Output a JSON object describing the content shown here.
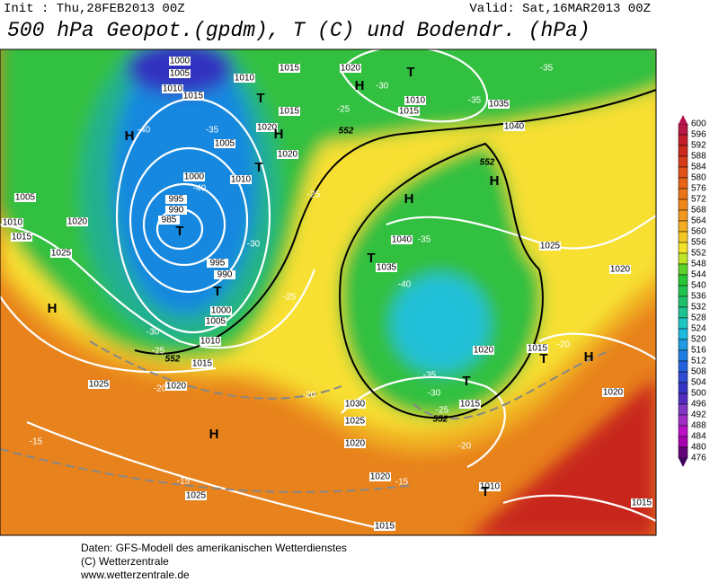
{
  "header": {
    "init": "Init : Thu,28FEB2013 00Z",
    "valid": "Valid: Sat,16MAR2013 00Z",
    "title": "500 hPa Geopot.(gpdm), T (C) und Bodendr. (hPa)"
  },
  "colorbar": {
    "labels": [
      600,
      596,
      592,
      588,
      584,
      580,
      576,
      572,
      568,
      564,
      560,
      556,
      552,
      548,
      544,
      540,
      536,
      532,
      528,
      524,
      520,
      516,
      512,
      508,
      504,
      500,
      496,
      492,
      488,
      484,
      480,
      476
    ]
  },
  "map_labels": [
    "1000",
    "1005",
    "1010",
    "1015",
    "1010",
    "1015",
    "1020",
    "1035",
    "1040",
    "1015",
    "1020",
    "1020",
    "1005",
    "1010",
    "1000",
    "995",
    "990",
    "985",
    "995",
    "990",
    "1000",
    "1005",
    "1010",
    "1015",
    "1005",
    "1010",
    "1015",
    "1020",
    "1025",
    "1025",
    "1020",
    "1030",
    "1025",
    "1020",
    "1020",
    "1025",
    "1015",
    "1015",
    "1020",
    "1020",
    "1025",
    "1020",
    "1015",
    "1015",
    "1010",
    "1015",
    "1040",
    "1035",
    "1010",
    "-40",
    "-35",
    "-40",
    "-30",
    "-25",
    "-25",
    "-25",
    "-30",
    "-35",
    "-35",
    "-35",
    "-40",
    "-35",
    "-30",
    "-25",
    "-20",
    "-20",
    "-20",
    "-20",
    "-25",
    "-30",
    "-15",
    "-15",
    "-15",
    "H",
    "H",
    "H",
    "H",
    "H",
    "H",
    "H",
    "H",
    "T",
    "T",
    "T",
    "T",
    "T",
    "T",
    "T",
    "T",
    "T",
    "552",
    "552",
    "552",
    "552"
  ],
  "footer": [
    "Daten: GFS-Modell des amerikanischen Wetterdienstes",
    "(C) Wetterzentrale",
    "www.wetterzentrale.de"
  ]
}
